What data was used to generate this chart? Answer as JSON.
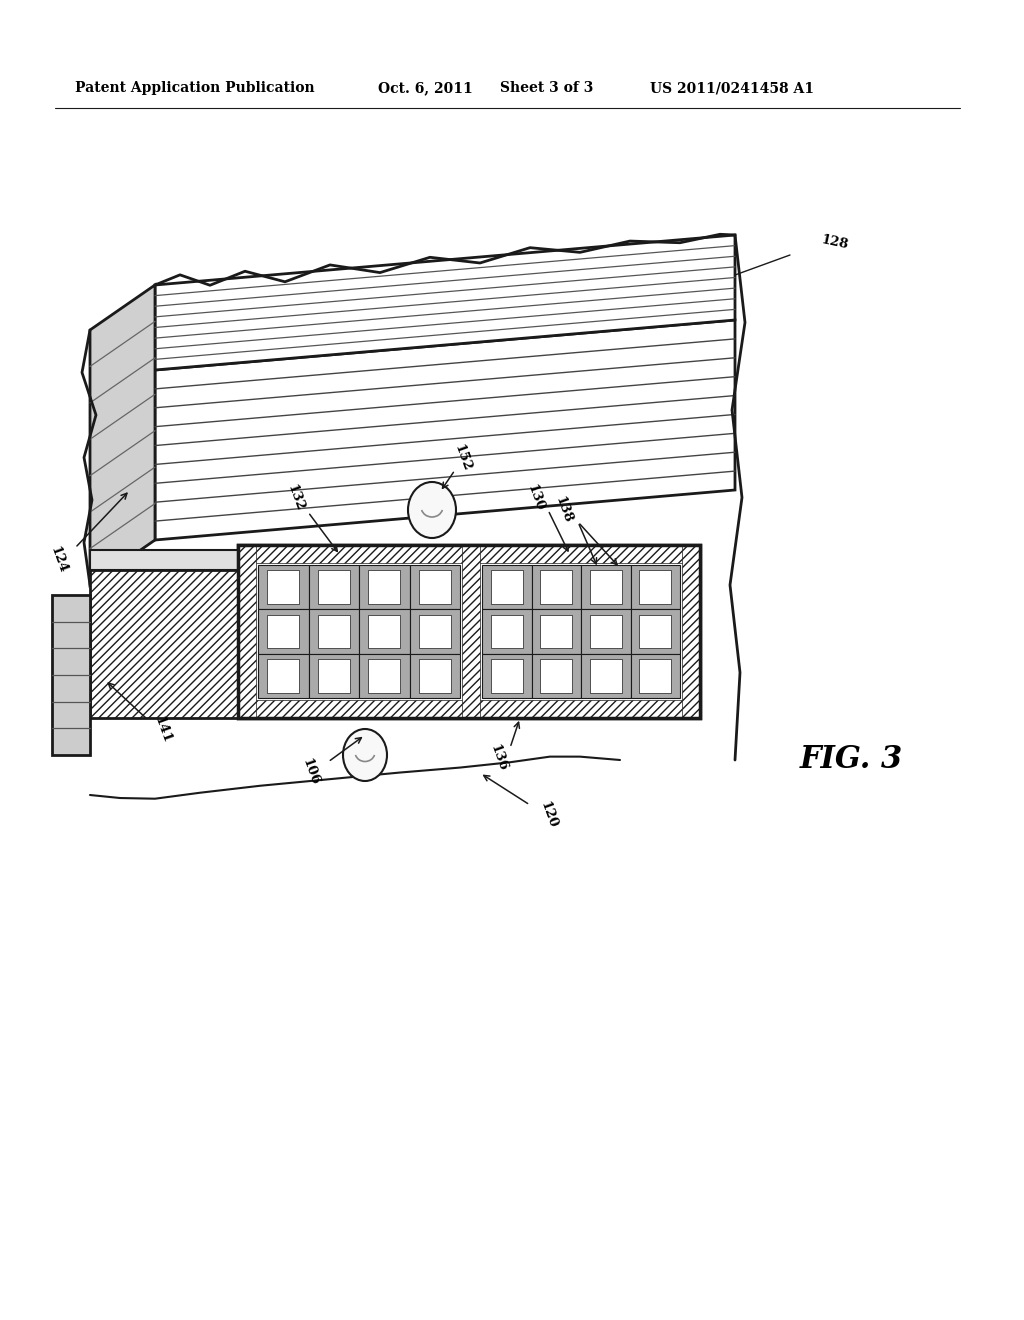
{
  "bg_color": "#ffffff",
  "line_color": "#1a1a1a",
  "header_text1": "Patent Application Publication",
  "header_text2": "Oct. 6, 2011",
  "header_text3": "Sheet 3 of 3",
  "header_text4": "US 2011/0241458 A1",
  "fig_label": "FIG. 3",
  "header_fontsize": 10,
  "fig_fontsize": 22,
  "label_fontsize": 9.5,
  "stator_top_stripe_color": "#aaaaaa",
  "coil_bar_color": "#888888",
  "coil_bar_light": "#dddddd",
  "side_face_color": "#cccccc",
  "hatch_color": "#333333"
}
